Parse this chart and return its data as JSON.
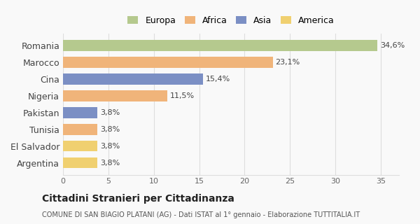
{
  "categories": [
    "Romania",
    "Marocco",
    "Cina",
    "Nigeria",
    "Pakistan",
    "Tunisia",
    "El Salvador",
    "Argentina"
  ],
  "values": [
    34.6,
    23.1,
    15.4,
    11.5,
    3.8,
    3.8,
    3.8,
    3.8
  ],
  "labels": [
    "34,6%",
    "23,1%",
    "15,4%",
    "11,5%",
    "3,8%",
    "3,8%",
    "3,8%",
    "3,8%"
  ],
  "colors": [
    "#b5c98e",
    "#f0b47a",
    "#7b8fc4",
    "#f0b47a",
    "#7b8fc4",
    "#f0b47a",
    "#f0d070",
    "#f0d070"
  ],
  "legend_labels": [
    "Europa",
    "Africa",
    "Asia",
    "America"
  ],
  "legend_colors": [
    "#b5c98e",
    "#f0b47a",
    "#7b8fc4",
    "#f0d070"
  ],
  "xlim": [
    0,
    37
  ],
  "xticks": [
    0,
    5,
    10,
    15,
    20,
    25,
    30,
    35
  ],
  "title": "Cittadini Stranieri per Cittadinanza",
  "subtitle": "COMUNE DI SAN BIAGIO PLATANI (AG) - Dati ISTAT al 1° gennaio - Elaborazione TUTTITALIA.IT",
  "bg_color": "#f9f9f9",
  "grid_color": "#dddddd"
}
